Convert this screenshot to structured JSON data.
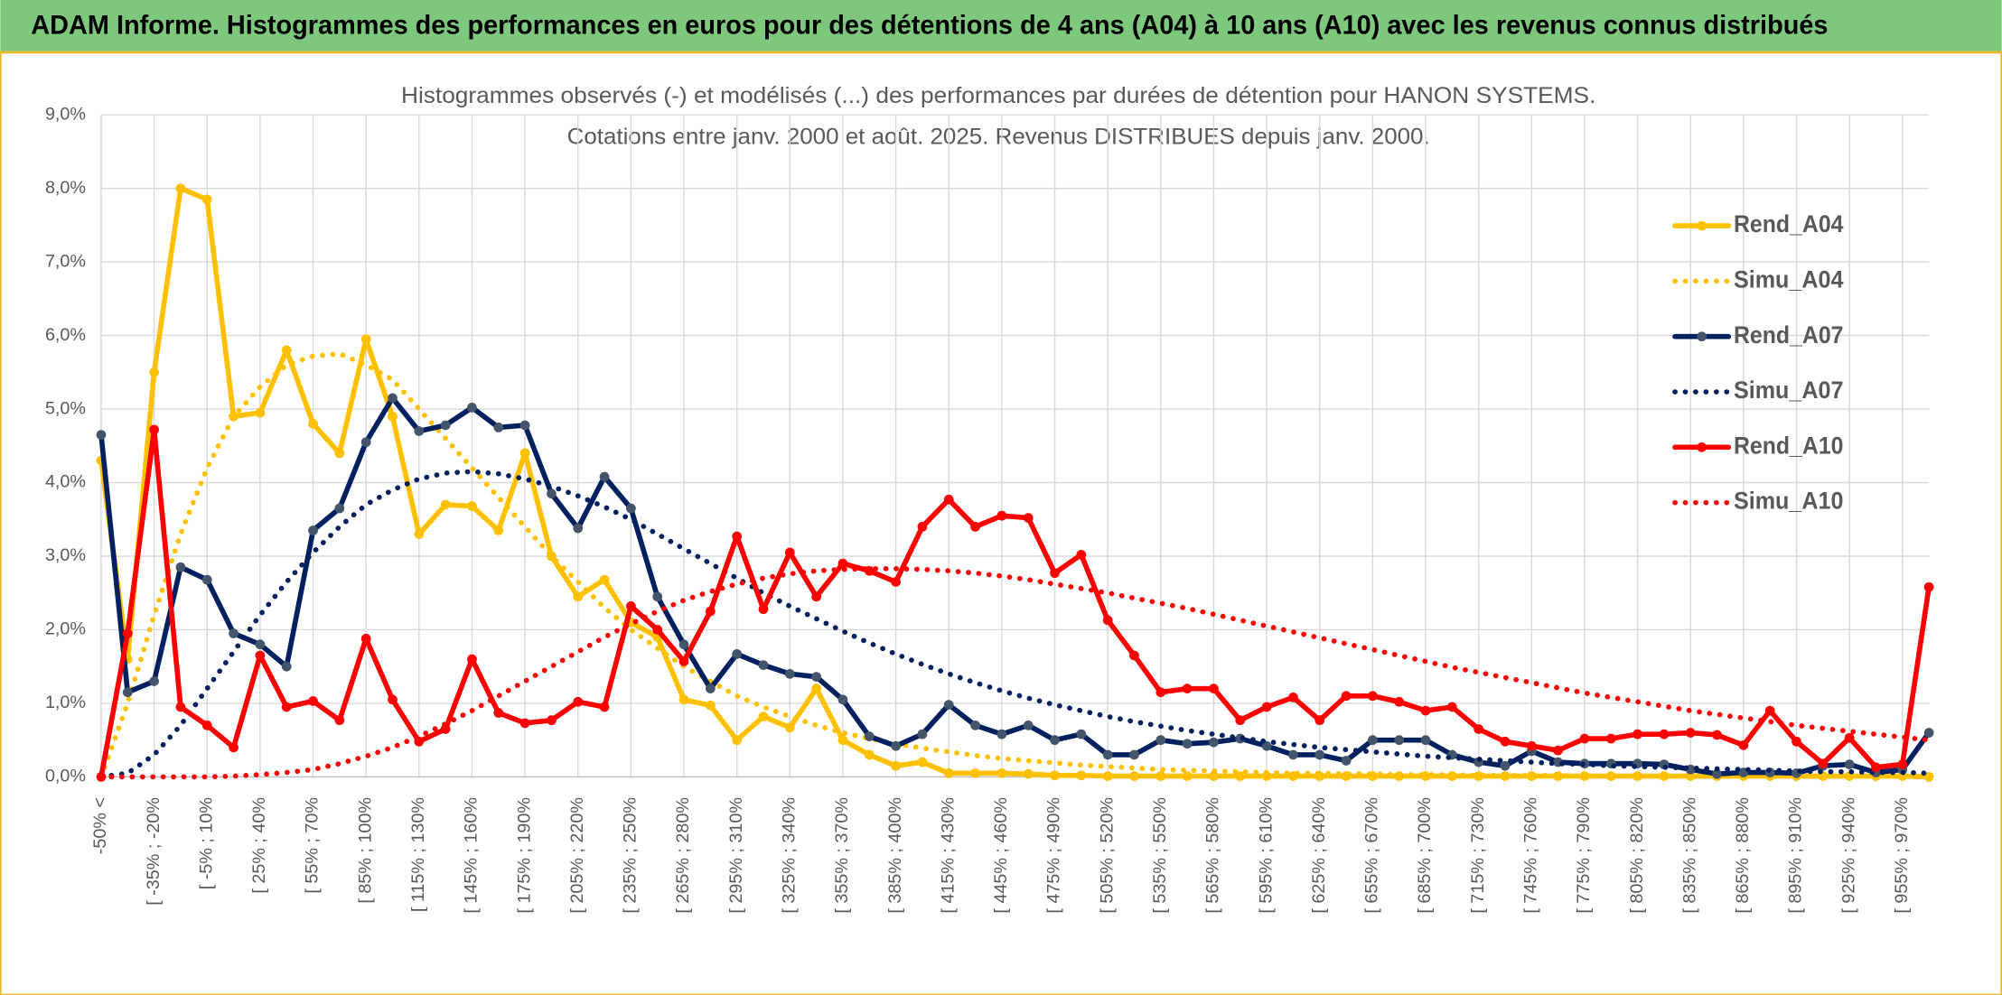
{
  "header": {
    "title": "ADAM Informe. Histogrammes des performances en euros pour des détentions de 4 ans (A04) à 10 ans (A10) avec les revenus connus distribués"
  },
  "chart_data": {
    "type": "line",
    "title": "Histogrammes observés (-) et modélisés (...) des performances par durées de détention pour HANON SYSTEMS.",
    "subtitle": "Cotations entre janv. 2000 et août. 2025. Revenus DISTRIBUES depuis janv. 2000.",
    "categories": [
      "-50% <",
      null,
      "[ -35% ; -20%",
      null,
      "[ -5% ; 10%",
      null,
      "[ 25% ; 40%",
      null,
      "[ 55% ; 70%",
      null,
      "[ 85% ; 100%",
      null,
      "[ 115% ; 130%",
      null,
      "[ 145% ; 160%",
      null,
      "[ 175% ; 190%",
      null,
      "[ 205% ; 220%",
      null,
      "[ 235% ; 250%",
      null,
      "[ 265% ; 280%",
      null,
      "[ 295% ; 310%",
      null,
      "[ 325% ; 340%",
      null,
      "[ 355% ; 370%",
      null,
      "[ 385% ; 400%",
      null,
      "[ 415% ; 430%",
      null,
      "[ 445% ; 460%",
      null,
      "[ 475% ; 490%",
      null,
      "[ 505% ; 520%",
      null,
      "[ 535% ; 550%",
      null,
      "[ 565% ; 580%",
      null,
      "[ 595% ; 610%",
      null,
      "[ 625% ; 640%",
      null,
      "[ 655% ; 670%",
      null,
      "[ 685% ; 700%",
      null,
      "[ 715% ; 730%",
      null,
      "[ 745% ; 760%",
      null,
      "[ 775% ; 790%",
      null,
      "[ 805% ; 820%",
      null,
      "[ 835% ; 850%",
      null,
      "[ 865% ; 880%",
      null,
      "[ 895% ; 910%",
      null,
      "[ 925% ; 940%",
      null,
      "[ 955% ; 970%",
      null
    ],
    "series": [
      {
        "name": "Rend_A04",
        "color": "#ffc000",
        "style": "solid",
        "values": [
          4.3,
          1.6,
          5.5,
          8.0,
          7.85,
          4.9,
          4.95,
          5.8,
          4.8,
          4.4,
          5.95,
          4.9,
          3.3,
          3.7,
          3.68,
          3.35,
          4.4,
          3.0,
          2.45,
          2.68,
          2.1,
          1.9,
          1.05,
          0.97,
          0.5,
          0.82,
          0.67,
          1.2,
          0.5,
          0.3,
          0.15,
          0.2,
          0.05,
          0.05,
          0.05,
          0.04,
          0.02,
          0.02,
          0.01,
          0.01,
          0.01,
          0.01,
          0.01,
          0.01,
          0.01,
          0.01,
          0.01,
          0.01,
          0.01,
          0.01,
          0.01,
          0.01,
          0.01,
          0.01,
          0.01,
          0.01,
          0.01,
          0.01,
          0.01,
          0.01,
          0.01,
          0.01,
          0.01,
          0.01,
          0.01,
          0.01,
          0.01,
          0.01,
          0.01,
          0.0
        ]
      },
      {
        "name": "Simu_A04",
        "color": "#ffc000",
        "style": "dotted",
        "values": [
          0,
          1.0,
          2.2,
          3.3,
          4.2,
          4.9,
          5.3,
          5.6,
          5.72,
          5.75,
          5.6,
          5.4,
          5.0,
          4.6,
          4.2,
          3.8,
          3.4,
          3.0,
          2.65,
          2.3,
          2.0,
          1.75,
          1.5,
          1.3,
          1.1,
          0.95,
          0.82,
          0.7,
          0.6,
          0.52,
          0.45,
          0.39,
          0.34,
          0.29,
          0.25,
          0.22,
          0.19,
          0.16,
          0.14,
          0.12,
          0.1,
          0.09,
          0.08,
          0.07,
          0.06,
          0.05,
          0.05,
          0.04,
          0.04,
          0.03,
          0.03,
          0.03,
          0.02,
          0.02,
          0.02,
          0.02,
          0.01,
          0.01,
          0.01,
          0.01,
          0.01,
          0.01,
          0.01,
          0.01,
          0.01,
          0.01,
          0.01,
          0.01,
          0.01,
          0.01
        ]
      },
      {
        "name": "Rend_A07",
        "color": "#002060",
        "style": "solid",
        "values": [
          4.65,
          1.15,
          1.3,
          2.85,
          2.68,
          1.95,
          1.8,
          1.5,
          3.35,
          3.65,
          4.55,
          5.15,
          4.7,
          4.78,
          5.02,
          4.75,
          4.78,
          3.85,
          3.38,
          4.08,
          3.65,
          2.45,
          1.8,
          1.2,
          1.67,
          1.52,
          1.4,
          1.36,
          1.05,
          0.55,
          0.42,
          0.58,
          0.98,
          0.7,
          0.58,
          0.7,
          0.5,
          0.58,
          0.3,
          0.3,
          0.5,
          0.45,
          0.47,
          0.52,
          0.42,
          0.3,
          0.3,
          0.22,
          0.5,
          0.5,
          0.5,
          0.3,
          0.2,
          0.15,
          0.35,
          0.2,
          0.18,
          0.18,
          0.18,
          0.17,
          0.1,
          0.04,
          0.06,
          0.06,
          0.05,
          0.15,
          0.17,
          0.06,
          0.1,
          0.6
        ]
      },
      {
        "name": "Simu_A07",
        "color": "#002060",
        "style": "dotted",
        "values": [
          0,
          0.05,
          0.3,
          0.7,
          1.2,
          1.7,
          2.2,
          2.65,
          3.05,
          3.4,
          3.7,
          3.9,
          4.05,
          4.13,
          4.15,
          4.12,
          4.05,
          3.95,
          3.82,
          3.67,
          3.5,
          3.3,
          3.1,
          2.9,
          2.7,
          2.5,
          2.32,
          2.15,
          1.98,
          1.82,
          1.67,
          1.53,
          1.4,
          1.28,
          1.17,
          1.07,
          0.98,
          0.9,
          0.82,
          0.75,
          0.69,
          0.63,
          0.58,
          0.53,
          0.48,
          0.44,
          0.4,
          0.37,
          0.34,
          0.31,
          0.28,
          0.26,
          0.24,
          0.22,
          0.2,
          0.18,
          0.17,
          0.15,
          0.14,
          0.13,
          0.12,
          0.11,
          0.1,
          0.09,
          0.08,
          0.07,
          0.07,
          0.06,
          0.06,
          0.05
        ]
      },
      {
        "name": "Rend_A10",
        "color": "#ff0000",
        "style": "solid",
        "values": [
          0.0,
          1.95,
          4.72,
          0.95,
          0.7,
          0.4,
          1.65,
          0.95,
          1.03,
          0.77,
          1.88,
          1.05,
          0.48,
          0.65,
          1.6,
          0.87,
          0.73,
          0.77,
          1.02,
          0.95,
          2.32,
          2.0,
          1.57,
          2.25,
          3.27,
          2.28,
          3.05,
          2.45,
          2.9,
          2.8,
          2.65,
          3.4,
          3.77,
          3.4,
          3.55,
          3.52,
          2.77,
          3.02,
          2.13,
          1.65,
          1.15,
          1.2,
          1.2,
          0.77,
          0.95,
          1.08,
          0.77,
          1.1,
          1.1,
          1.02,
          0.9,
          0.95,
          0.65,
          0.48,
          0.42,
          0.36,
          0.52,
          0.52,
          0.58,
          0.58,
          0.6,
          0.57,
          0.43,
          0.9,
          0.48,
          0.18,
          0.53,
          0.13,
          0.17,
          2.58
        ]
      },
      {
        "name": "Simu_A10",
        "color": "#ff0000",
        "style": "dotted",
        "values": [
          0,
          0,
          0,
          0,
          0,
          0.01,
          0.03,
          0.06,
          0.1,
          0.18,
          0.28,
          0.4,
          0.55,
          0.72,
          0.9,
          1.1,
          1.3,
          1.5,
          1.7,
          1.9,
          2.08,
          2.25,
          2.4,
          2.52,
          2.62,
          2.7,
          2.76,
          2.8,
          2.82,
          2.83,
          2.83,
          2.82,
          2.8,
          2.77,
          2.73,
          2.68,
          2.62,
          2.56,
          2.5,
          2.43,
          2.36,
          2.29,
          2.21,
          2.13,
          2.05,
          1.97,
          1.89,
          1.81,
          1.73,
          1.65,
          1.57,
          1.49,
          1.42,
          1.35,
          1.28,
          1.21,
          1.14,
          1.08,
          1.02,
          0.96,
          0.9,
          0.85,
          0.8,
          0.75,
          0.7,
          0.66,
          0.62,
          0.58,
          0.54,
          0.5
        ]
      }
    ],
    "ylim": [
      0,
      9
    ],
    "yticks": [
      {
        "value": 0,
        "label": "0,0%"
      },
      {
        "value": 1,
        "label": "1,0%"
      },
      {
        "value": 2,
        "label": "2,0%"
      },
      {
        "value": 3,
        "label": "3,0%"
      },
      {
        "value": 4,
        "label": "4,0%"
      },
      {
        "value": 5,
        "label": "5,0%"
      },
      {
        "value": 6,
        "label": "6,0%"
      },
      {
        "value": 7,
        "label": "7,0%"
      },
      {
        "value": 8,
        "label": "8,0%"
      },
      {
        "value": 9,
        "label": "9,0%"
      }
    ],
    "grid": true,
    "legend": "right"
  }
}
